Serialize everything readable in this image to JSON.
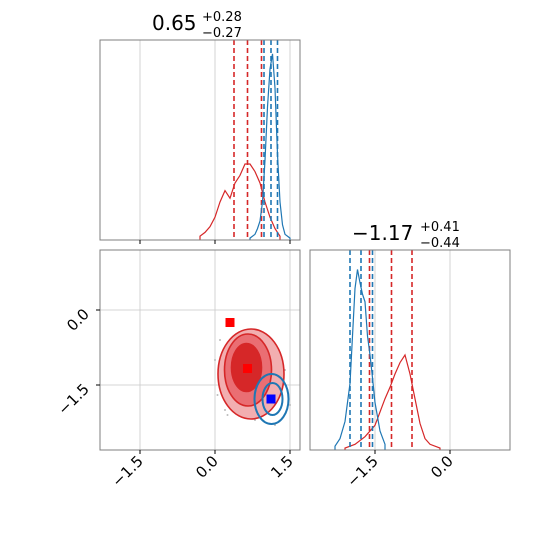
{
  "chart_data": {
    "type": "corner",
    "parameters": [
      {
        "key": "p1",
        "range": [
          -2.3,
          1.7
        ]
      },
      {
        "key": "p2",
        "range": [
          -2.8,
          1.2
        ]
      }
    ],
    "titles": [
      {
        "value": "0.65",
        "plus": "+0.28",
        "minus": "−0.27"
      },
      {
        "value": "−1.17",
        "plus": "+0.41",
        "minus": "−0.44"
      }
    ],
    "ticks": {
      "p1": [
        {
          "value": -1.5,
          "label": "−1.5"
        },
        {
          "value": 0.0,
          "label": "0.0"
        },
        {
          "value": 1.5,
          "label": "1.5"
        }
      ],
      "p2": [
        {
          "value": -1.5,
          "label": "−1.5"
        },
        {
          "value": 0.0,
          "label": "0.0"
        }
      ]
    },
    "grid": true,
    "series": [
      {
        "color": "#d62728",
        "hist_p1": [
          {
            "x": -0.3,
            "y": 0.02
          },
          {
            "x": -0.2,
            "y": 0.04
          },
          {
            "x": -0.1,
            "y": 0.07
          },
          {
            "x": 0.0,
            "y": 0.12
          },
          {
            "x": 0.1,
            "y": 0.2
          },
          {
            "x": 0.2,
            "y": 0.26
          },
          {
            "x": 0.3,
            "y": 0.22
          },
          {
            "x": 0.4,
            "y": 0.3
          },
          {
            "x": 0.5,
            "y": 0.34
          },
          {
            "x": 0.6,
            "y": 0.4
          },
          {
            "x": 0.7,
            "y": 0.4
          },
          {
            "x": 0.8,
            "y": 0.36
          },
          {
            "x": 0.9,
            "y": 0.3
          },
          {
            "x": 1.0,
            "y": 0.2
          },
          {
            "x": 1.1,
            "y": 0.12
          },
          {
            "x": 1.2,
            "y": 0.06
          },
          {
            "x": 1.3,
            "y": 0.02
          }
        ],
        "quantiles_p1": [
          0.38,
          0.65,
          0.93
        ],
        "hist_p2": [
          {
            "x": -2.1,
            "y": 0.01
          },
          {
            "x": -1.9,
            "y": 0.03
          },
          {
            "x": -1.7,
            "y": 0.07
          },
          {
            "x": -1.5,
            "y": 0.13
          },
          {
            "x": -1.4,
            "y": 0.2
          },
          {
            "x": -1.3,
            "y": 0.27
          },
          {
            "x": -1.2,
            "y": 0.33
          },
          {
            "x": -1.1,
            "y": 0.4
          },
          {
            "x": -1.0,
            "y": 0.46
          },
          {
            "x": -0.9,
            "y": 0.5
          },
          {
            "x": -0.8,
            "y": 0.4
          },
          {
            "x": -0.7,
            "y": 0.27
          },
          {
            "x": -0.6,
            "y": 0.14
          },
          {
            "x": -0.5,
            "y": 0.06
          },
          {
            "x": -0.4,
            "y": 0.03
          },
          {
            "x": -0.2,
            "y": 0.01
          }
        ],
        "quantiles_p2": [
          -1.61,
          -1.17,
          -0.76
        ],
        "contours": [
          {
            "cx": 0.72,
            "cy": -1.28,
            "rx": 0.66,
            "ry": 0.9,
            "fill": "#f2aeb0"
          },
          {
            "cx": 0.66,
            "cy": -1.2,
            "rx": 0.47,
            "ry": 0.72,
            "fill": "#ea6e73"
          },
          {
            "cx": 0.63,
            "cy": -1.15,
            "rx": 0.3,
            "ry": 0.48,
            "fill": "#d62728"
          }
        ],
        "markers": [
          {
            "x": 0.3,
            "y": -0.25
          },
          {
            "x": 0.65,
            "y": -1.17
          }
        ]
      },
      {
        "color": "#1f77b4",
        "hist_p1": [
          {
            "x": 0.7,
            "y": 0.01
          },
          {
            "x": 0.8,
            "y": 0.03
          },
          {
            "x": 0.85,
            "y": 0.06
          },
          {
            "x": 0.9,
            "y": 0.1
          },
          {
            "x": 0.95,
            "y": 0.2
          },
          {
            "x": 1.0,
            "y": 0.42
          },
          {
            "x": 1.05,
            "y": 0.7
          },
          {
            "x": 1.1,
            "y": 0.9
          },
          {
            "x": 1.15,
            "y": 0.98
          },
          {
            "x": 1.2,
            "y": 0.8
          },
          {
            "x": 1.25,
            "y": 0.45
          },
          {
            "x": 1.3,
            "y": 0.2
          },
          {
            "x": 1.35,
            "y": 0.08
          },
          {
            "x": 1.4,
            "y": 0.03
          },
          {
            "x": 1.5,
            "y": 0.01
          }
        ],
        "quantiles_p1": [
          0.98,
          1.12,
          1.25
        ],
        "hist_p2": [
          {
            "x": -2.3,
            "y": 0.02
          },
          {
            "x": -2.2,
            "y": 0.06
          },
          {
            "x": -2.1,
            "y": 0.15
          },
          {
            "x": -2.0,
            "y": 0.35
          },
          {
            "x": -1.95,
            "y": 0.6
          },
          {
            "x": -1.9,
            "y": 0.85
          },
          {
            "x": -1.85,
            "y": 0.95
          },
          {
            "x": -1.8,
            "y": 0.88
          },
          {
            "x": -1.75,
            "y": 0.82
          },
          {
            "x": -1.7,
            "y": 0.78
          },
          {
            "x": -1.65,
            "y": 0.6
          },
          {
            "x": -1.6,
            "y": 0.5
          },
          {
            "x": -1.55,
            "y": 0.38
          },
          {
            "x": -1.5,
            "y": 0.25
          },
          {
            "x": -1.4,
            "y": 0.1
          },
          {
            "x": -1.3,
            "y": 0.03
          }
        ],
        "quantiles_p2": [
          -2.0,
          -1.78,
          -1.55
        ],
        "contours": [
          {
            "cx": 1.13,
            "cy": -1.78,
            "rx": 0.34,
            "ry": 0.5,
            "fill": "none"
          },
          {
            "cx": 1.15,
            "cy": -1.78,
            "rx": 0.2,
            "ry": 0.32,
            "fill": "none"
          }
        ],
        "markers": [
          {
            "x": 1.12,
            "y": -1.78
          }
        ]
      }
    ]
  }
}
